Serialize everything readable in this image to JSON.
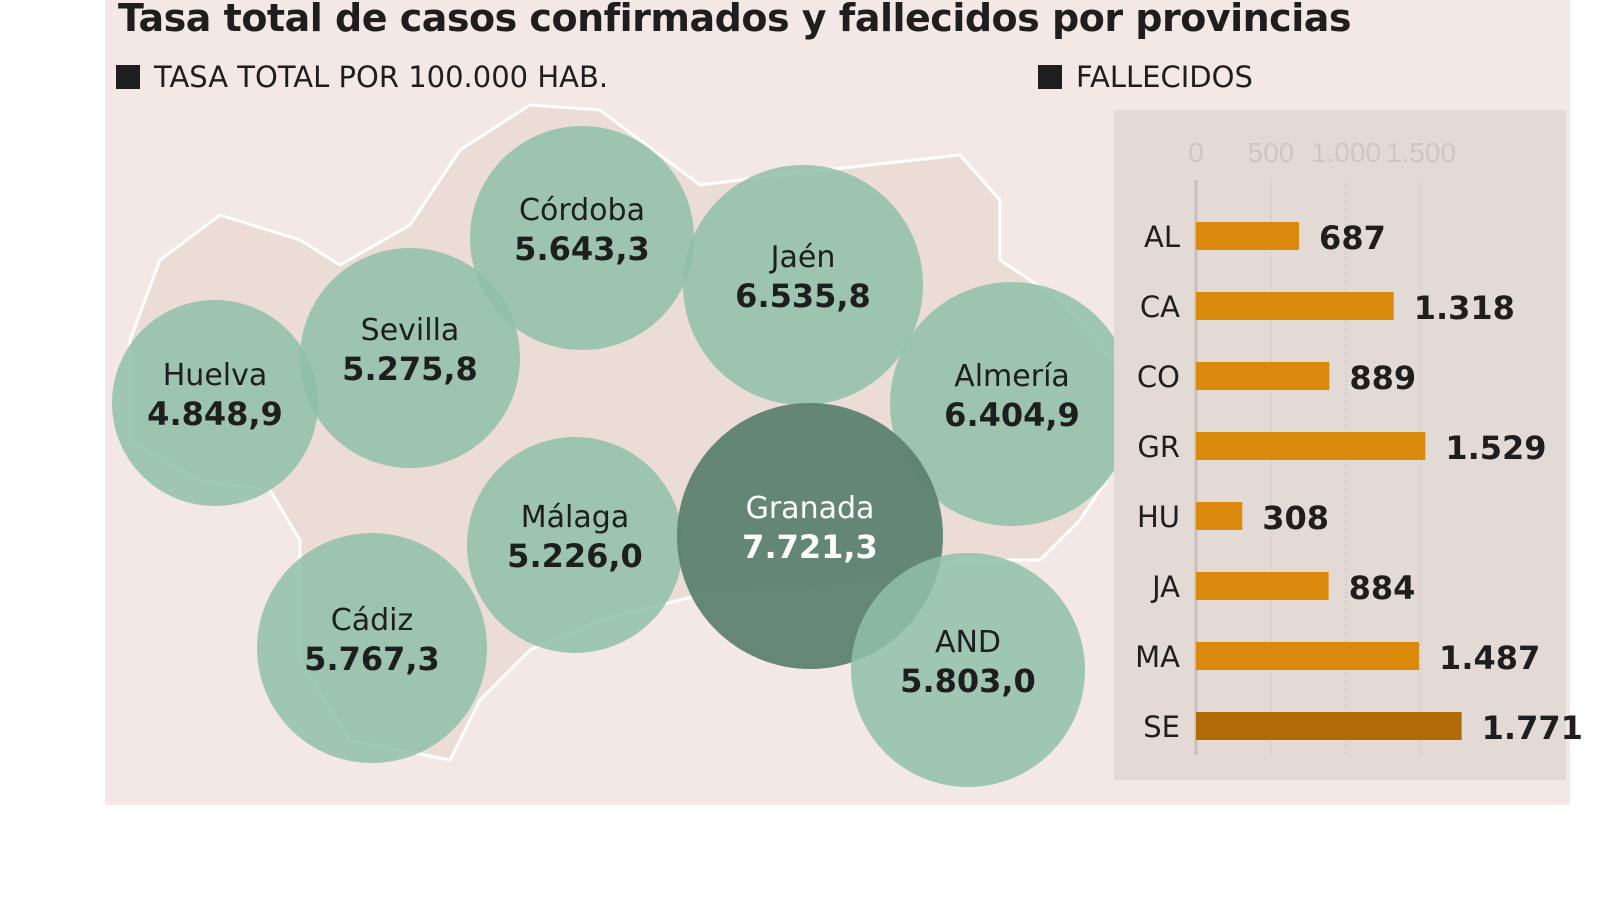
{
  "title": "Tasa total de casos confirmados y fallecidos por provincias",
  "legend_left": "TASA TOTAL POR 100.000 HAB.",
  "legend_right": "FALLECIDOS",
  "colors": {
    "background": "#f3e8e4",
    "circle": "#8fbfa8",
    "circle_highlight": "#5d8270",
    "bar": "#d98a0c",
    "bar_highlight": "#b06a08",
    "bar_panel": "#e3dad5"
  },
  "provinces": [
    {
      "name": "Córdoba",
      "value": "5.643,3"
    },
    {
      "name": "Jaén",
      "value": "6.535,8"
    },
    {
      "name": "Sevilla",
      "value": "5.275,8"
    },
    {
      "name": "Huelva",
      "value": "4.848,9"
    },
    {
      "name": "Almería",
      "value": "6.404,9"
    },
    {
      "name": "Málaga",
      "value": "5.226,0"
    },
    {
      "name": "Granada",
      "value": "7.721,3",
      "highlight": true
    },
    {
      "name": "Cádiz",
      "value": "5.767,3"
    },
    {
      "name": "AND",
      "value": "5.803,0"
    }
  ],
  "chart_data": {
    "type": "bar",
    "orientation": "horizontal",
    "title": "FALLECIDOS",
    "categories": [
      "AL",
      "CA",
      "CO",
      "GR",
      "HU",
      "JA",
      "MA",
      "SE"
    ],
    "values": [
      687,
      1318,
      889,
      1529,
      308,
      884,
      1487,
      1771
    ],
    "value_labels": [
      "687",
      "1.318",
      "889",
      "1.529",
      "308",
      "884",
      "1.487",
      "1.771"
    ],
    "highlight": "SE",
    "xlim": [
      0,
      1771
    ],
    "x_ticks": [
      0,
      500,
      1000,
      1500
    ],
    "x_tick_labels": [
      "0",
      "500",
      "1.000",
      "1.500"
    ],
    "grid": true
  }
}
